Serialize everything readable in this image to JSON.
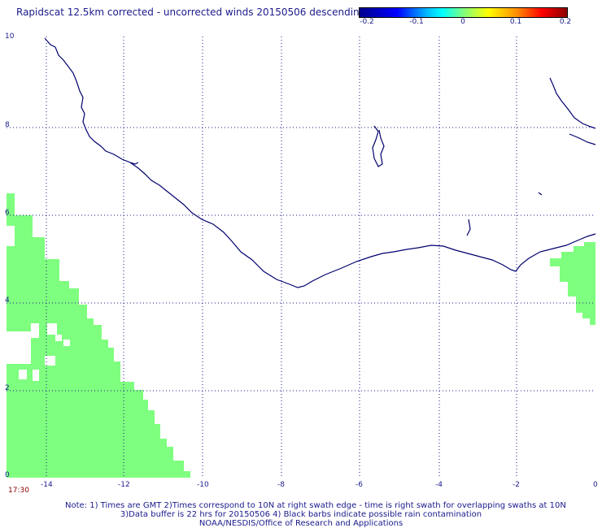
{
  "title": "Rapidscat 12.5km corrected - uncorrected winds 20150506 descending",
  "colorbar": {
    "ticks": [
      "-0.2",
      "-0.1",
      "0",
      "0.1",
      "0.2"
    ]
  },
  "axes": {
    "x_ticks": [
      "-14",
      "-12",
      "-10",
      "-8",
      "-6",
      "-4",
      "-2",
      "0"
    ],
    "y_ticks": [
      "0",
      "2",
      "4",
      "6",
      "8",
      "10"
    ]
  },
  "time_label": "17:30",
  "notes": {
    "line1": "Note: 1) Times are GMT 2)Times correspond to 10N at right swath edge - time is right swath for overlapping swaths at 10N",
    "line2": "3)Data buffer is 22 hrs for 20150506 4) Black barbs indicate possible rain contamination",
    "line3": "NOAA/NESDIS/Office of Research and Applications"
  },
  "colors": {
    "coastline": "#00006e",
    "data_fill": "#7fff7f",
    "grid": "#1a1a8c"
  }
}
